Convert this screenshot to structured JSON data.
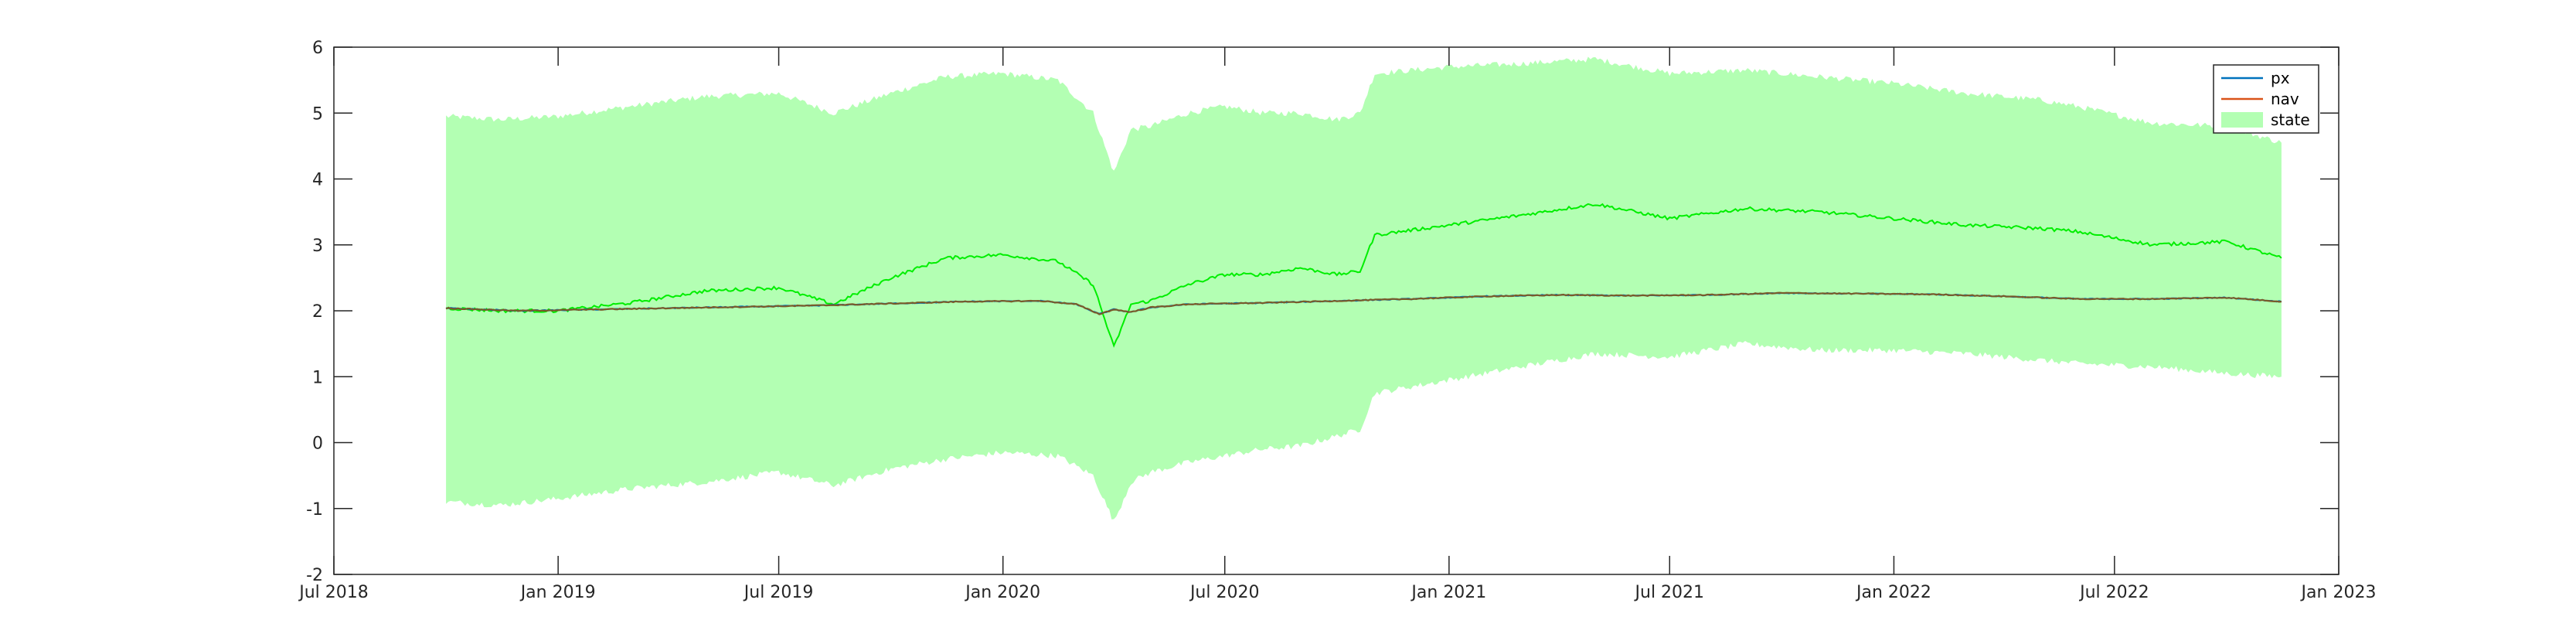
{
  "chart_data": {
    "type": "area",
    "title": "",
    "xlabel": "",
    "ylabel": "",
    "xlim": [
      "2018-07-01",
      "2023-01-01"
    ],
    "ylim": [
      -2,
      6
    ],
    "grid": false,
    "legend_position": "top-right",
    "x_ticks": [
      "Jul 2018",
      "Jan 2019",
      "Jul 2019",
      "Jan 2020",
      "Jul 2020",
      "Jan 2021",
      "Jul 2021",
      "Jan 2022",
      "Jul 2022",
      "Jan 2023"
    ],
    "y_ticks": [
      "-2",
      "-1",
      "0",
      "1",
      "2",
      "3",
      "4",
      "5",
      "6"
    ],
    "colors": {
      "px": "#0072BD",
      "nav": "#D95319",
      "state_band": "#B3FFB3",
      "state_line": "#00EE00"
    },
    "series": [
      {
        "name": "px",
        "x": [
          "2018-10-01",
          "2018-12-01",
          "2019-02-01",
          "2019-04-01",
          "2019-06-01",
          "2019-08-01",
          "2019-10-01",
          "2019-12-01",
          "2020-02-01",
          "2020-03-01",
          "2020-03-20",
          "2020-04-01",
          "2020-04-15",
          "2020-05-01",
          "2020-06-01",
          "2020-08-01",
          "2020-10-01",
          "2020-12-01",
          "2021-02-01",
          "2021-04-01",
          "2021-06-01",
          "2021-08-01",
          "2021-10-01",
          "2021-12-01",
          "2022-02-01",
          "2022-04-01",
          "2022-06-01",
          "2022-08-01",
          "2022-10-01",
          "2022-11-15"
        ],
        "values": [
          2.04,
          2.0,
          2.02,
          2.04,
          2.06,
          2.08,
          2.11,
          2.14,
          2.15,
          2.1,
          1.95,
          2.02,
          1.98,
          2.05,
          2.1,
          2.12,
          2.15,
          2.18,
          2.22,
          2.24,
          2.23,
          2.24,
          2.27,
          2.26,
          2.25,
          2.22,
          2.18,
          2.18,
          2.2,
          2.14
        ]
      },
      {
        "name": "nav",
        "x": [
          "2018-10-01",
          "2018-12-01",
          "2019-02-01",
          "2019-04-01",
          "2019-06-01",
          "2019-08-01",
          "2019-10-01",
          "2019-12-01",
          "2020-02-01",
          "2020-03-01",
          "2020-03-20",
          "2020-04-01",
          "2020-04-15",
          "2020-05-01",
          "2020-06-01",
          "2020-08-01",
          "2020-10-01",
          "2020-12-01",
          "2021-02-01",
          "2021-04-01",
          "2021-06-01",
          "2021-08-01",
          "2021-10-01",
          "2021-12-01",
          "2022-02-01",
          "2022-04-01",
          "2022-06-01",
          "2022-08-01",
          "2022-10-01",
          "2022-11-15"
        ],
        "values": [
          2.04,
          2.0,
          2.02,
          2.04,
          2.06,
          2.08,
          2.11,
          2.14,
          2.15,
          2.1,
          1.95,
          2.02,
          1.98,
          2.05,
          2.1,
          2.12,
          2.15,
          2.18,
          2.22,
          2.24,
          2.23,
          2.24,
          2.27,
          2.26,
          2.25,
          2.22,
          2.18,
          2.18,
          2.2,
          2.14
        ]
      },
      {
        "name": "state",
        "x": [
          "2018-10-01",
          "2018-11-15",
          "2019-01-01",
          "2019-03-01",
          "2019-05-01",
          "2019-07-01",
          "2019-08-15",
          "2019-10-01",
          "2019-11-15",
          "2020-01-01",
          "2020-02-15",
          "2020-03-15",
          "2020-04-01",
          "2020-04-15",
          "2020-05-01",
          "2020-06-01",
          "2020-07-01",
          "2020-08-01",
          "2020-09-01",
          "2020-10-01",
          "2020-10-20",
          "2020-11-01",
          "2021-01-01",
          "2021-03-01",
          "2021-05-01",
          "2021-07-01",
          "2021-09-01",
          "2021-11-01",
          "2022-01-01",
          "2022-03-01",
          "2022-05-01",
          "2022-06-01",
          "2022-08-01",
          "2022-10-01",
          "2022-11-15"
        ],
        "center": [
          2.04,
          2.0,
          2.0,
          2.12,
          2.3,
          2.35,
          2.1,
          2.5,
          2.8,
          2.85,
          2.75,
          2.4,
          1.45,
          2.1,
          2.15,
          2.4,
          2.55,
          2.55,
          2.65,
          2.55,
          2.6,
          3.15,
          3.3,
          3.45,
          3.62,
          3.4,
          3.55,
          3.5,
          3.4,
          3.3,
          3.25,
          3.2,
          3.0,
          3.05,
          2.8
        ],
        "lower": [
          -0.9,
          -0.95,
          -0.85,
          -0.7,
          -0.6,
          -0.45,
          -0.65,
          -0.4,
          -0.25,
          -0.15,
          -0.2,
          -0.5,
          -1.2,
          -0.6,
          -0.45,
          -0.3,
          -0.2,
          -0.1,
          -0.05,
          0.1,
          0.2,
          0.75,
          0.95,
          1.15,
          1.35,
          1.3,
          1.5,
          1.4,
          1.4,
          1.35,
          1.25,
          1.2,
          1.15,
          1.05,
          1.0
        ],
        "upper": [
          4.95,
          4.9,
          4.95,
          5.1,
          5.25,
          5.3,
          5.0,
          5.3,
          5.55,
          5.6,
          5.5,
          5.0,
          4.1,
          4.75,
          4.8,
          5.0,
          5.1,
          5.0,
          5.0,
          4.9,
          5.0,
          5.6,
          5.7,
          5.75,
          5.82,
          5.6,
          5.65,
          5.55,
          5.45,
          5.3,
          5.2,
          5.1,
          4.85,
          4.8,
          4.55
        ]
      }
    ],
    "legend": [
      "px",
      "nav",
      "state"
    ]
  }
}
